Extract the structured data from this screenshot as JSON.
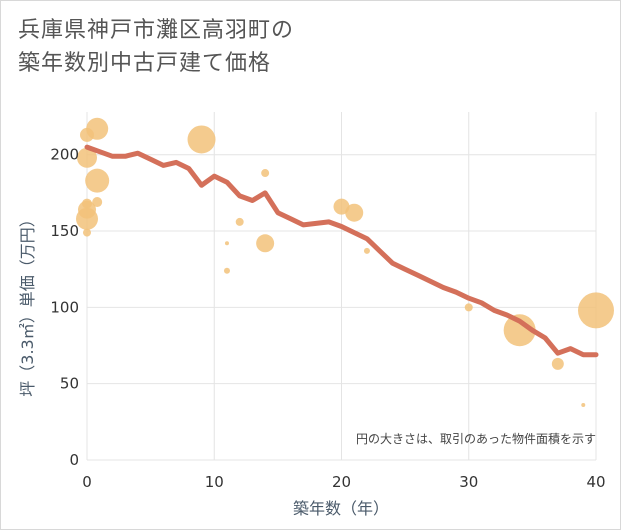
{
  "title_line1": "兵庫県神戸市灘区高羽町の",
  "title_line2": "築年数別中古戸建て価格",
  "chart_data": {
    "type": "scatter",
    "title": "兵庫県神戸市灘区高羽町の築年数別中古戸建て価格",
    "xlabel": "築年数（年）",
    "ylabel": "坪（3.3㎡）単価（万円）",
    "xlim": [
      0,
      40
    ],
    "ylim": [
      0,
      228
    ],
    "xticks": [
      0,
      10,
      20,
      30,
      40
    ],
    "yticks": [
      0,
      50,
      100,
      150,
      200
    ],
    "grid": true,
    "note": "円の大きさは、取引のあった物件面積を示す",
    "colors": {
      "bubble": "#f2c27a",
      "trend": "#d4705a"
    },
    "bubbles": [
      {
        "x": 0,
        "y": 213,
        "r": 7
      },
      {
        "x": 0,
        "y": 198,
        "r": 10
      },
      {
        "x": 0,
        "y": 168,
        "r": 5
      },
      {
        "x": 0,
        "y": 164,
        "r": 9
      },
      {
        "x": 0,
        "y": 158,
        "r": 11
      },
      {
        "x": 0,
        "y": 149,
        "r": 4
      },
      {
        "x": 0.8,
        "y": 217,
        "r": 11
      },
      {
        "x": 0.8,
        "y": 183,
        "r": 12
      },
      {
        "x": 0.8,
        "y": 169,
        "r": 5
      },
      {
        "x": 9,
        "y": 210,
        "r": 14
      },
      {
        "x": 11,
        "y": 142,
        "r": 2
      },
      {
        "x": 11,
        "y": 124,
        "r": 3
      },
      {
        "x": 12,
        "y": 156,
        "r": 4
      },
      {
        "x": 14,
        "y": 188,
        "r": 4
      },
      {
        "x": 14,
        "y": 142,
        "r": 9
      },
      {
        "x": 20,
        "y": 166,
        "r": 8
      },
      {
        "x": 21,
        "y": 162,
        "r": 9
      },
      {
        "x": 22,
        "y": 137,
        "r": 3
      },
      {
        "x": 30,
        "y": 100,
        "r": 4
      },
      {
        "x": 34,
        "y": 85,
        "r": 16
      },
      {
        "x": 37,
        "y": 63,
        "r": 6
      },
      {
        "x": 39,
        "y": 36,
        "r": 2
      },
      {
        "x": 40,
        "y": 98,
        "r": 18
      }
    ],
    "trend": {
      "x": [
        0,
        1,
        2,
        3,
        4,
        5,
        6,
        7,
        8,
        9,
        10,
        11,
        12,
        13,
        14,
        15,
        16,
        17,
        18,
        19,
        20,
        21,
        22,
        23,
        24,
        25,
        26,
        27,
        28,
        29,
        30,
        31,
        32,
        33,
        34,
        35,
        36,
        37,
        38,
        39,
        40
      ],
      "y": [
        205,
        202,
        199,
        199,
        201,
        197,
        193,
        195,
        191,
        180,
        186,
        182,
        173,
        170,
        175,
        162,
        158,
        154,
        155,
        156,
        153,
        149,
        145,
        137,
        129,
        125,
        121,
        117,
        113,
        110,
        106,
        103,
        98,
        95,
        91,
        85,
        80,
        70,
        73,
        69,
        69
      ]
    }
  }
}
